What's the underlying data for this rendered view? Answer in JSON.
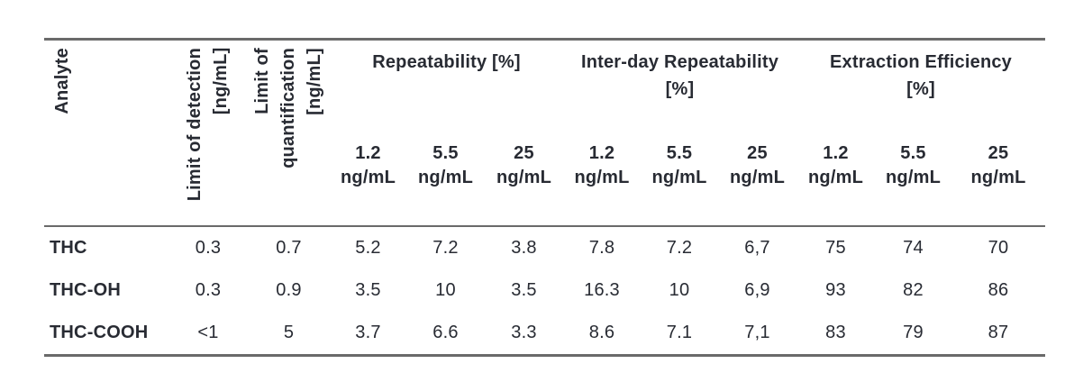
{
  "table": {
    "headers": {
      "analyte": "Analyte",
      "limit_of_detection": "Limit of detection\n[ng/mL]",
      "limit_of_quantification": "Limit of\nquantification\n[ng/mL]",
      "groups": [
        {
          "label": "Repeatability [%]"
        },
        {
          "label": "Inter-day Repeatability\n[%]"
        },
        {
          "label": "Extraction Efficiency\n[%]"
        }
      ],
      "concentrations": [
        "1.2\nng/mL",
        "5.5\nng/mL",
        "25\nng/mL",
        "1.2\nng/mL",
        "5.5\nng/mL",
        "25\nng/mL",
        "1.2\nng/mL",
        "5.5\nng/mL",
        "25\nng/mL"
      ]
    },
    "rows": [
      {
        "analyte": "THC",
        "limit_of_detection": "0.3",
        "limit_of_quantification": "0.7",
        "values": [
          "5.2",
          "7.2",
          "3.8",
          "7.8",
          "7.2",
          "6,7",
          "75",
          "74",
          "70"
        ]
      },
      {
        "analyte": "THC-OH",
        "limit_of_detection": "0.3",
        "limit_of_quantification": "0.9",
        "values": [
          "3.5",
          "10",
          "3.5",
          "16.3",
          "10",
          "6,9",
          "93",
          "82",
          "86"
        ]
      },
      {
        "analyte": "THC-COOH",
        "limit_of_detection": "<1",
        "limit_of_quantification": "5",
        "values": [
          "3.7",
          "6.6",
          "3.3",
          "8.6",
          "7.1",
          "7,1",
          "83",
          "79",
          "87"
        ]
      }
    ]
  },
  "colors": {
    "text": "#282b33",
    "border": "#6a6a6a",
    "background": "#ffffff"
  }
}
